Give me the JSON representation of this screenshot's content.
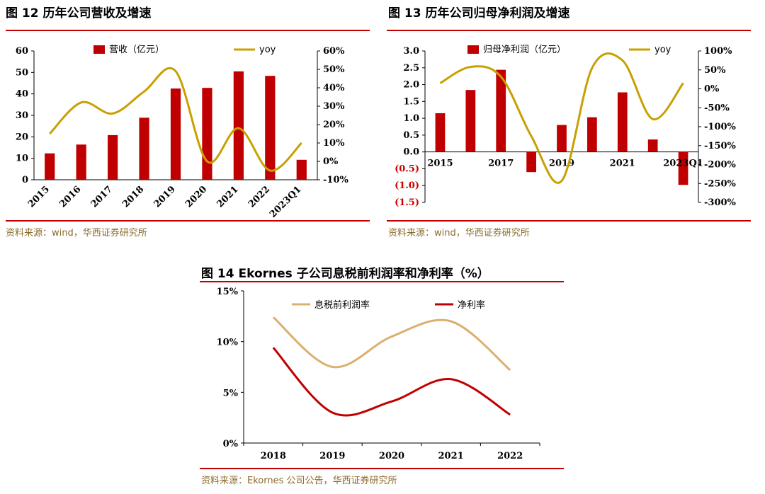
{
  "charts": [
    {
      "fig_title": "图 12    历年公司营收及增速",
      "source": "资料来源：wind，华西证券研究所",
      "chart_data": {
        "type": "bar",
        "categories": [
          "2015",
          "2016",
          "2017",
          "2018",
          "2019",
          "2020",
          "2021",
          "2022",
          "2023Q1"
        ],
        "series": [
          {
            "name": "营收（亿元）",
            "type": "bar",
            "axis": "left",
            "color": "#c00000",
            "values": [
              12.3,
              16.4,
              20.8,
              28.9,
              42.5,
              42.8,
              50.5,
              48.4,
              9.3
            ]
          },
          {
            "name": "yoy",
            "type": "line",
            "axis": "right",
            "color": "#c8a000",
            "values": [
              15,
              32,
              26,
              38,
              49,
              0,
              18,
              -5,
              10
            ]
          }
        ],
        "left_axis": {
          "ylim": [
            0,
            60
          ],
          "ticks": [
            "0",
            "10",
            "20",
            "30",
            "40",
            "50",
            "60"
          ]
        },
        "right_axis": {
          "ylim": [
            -10,
            60
          ],
          "ticks": [
            "-10%",
            "0%",
            "10%",
            "20%",
            "30%",
            "40%",
            "50%",
            "60%"
          ]
        },
        "legend": "top"
      }
    },
    {
      "fig_title": "图 13    历年公司归母净利润及增速",
      "source": "资料来源：wind，华西证券研究所",
      "chart_data": {
        "type": "bar",
        "categories": [
          "2015",
          "2016",
          "2017",
          "2018",
          "2019",
          "2020",
          "2021",
          "2022",
          "2023Q1"
        ],
        "x_tick_labels": [
          "2015",
          "2017",
          "2019",
          "2021",
          "2023Q1"
        ],
        "series": [
          {
            "name": "归母净利润（亿元）",
            "type": "bar",
            "axis": "left",
            "color": "#c00000",
            "values": [
              1.15,
              1.84,
              2.44,
              -0.6,
              0.8,
              1.03,
              1.77,
              0.37,
              -0.98
            ]
          },
          {
            "name": "yoy",
            "type": "line",
            "axis": "right",
            "color": "#c8a000",
            "values": [
              15,
              58,
              32,
              -125,
              -243,
              55,
              75,
              -80,
              15
            ]
          }
        ],
        "left_axis": {
          "ylim": [
            -1.5,
            3.0
          ],
          "ticks": [
            "(1.5)",
            "(1.0)",
            "(0.5)",
            "0.0",
            "0.5",
            "1.0",
            "1.5",
            "2.0",
            "2.5",
            "3.0"
          ]
        },
        "right_axis": {
          "ylim": [
            -300,
            100
          ],
          "ticks": [
            "-300%",
            "-250%",
            "-200%",
            "-150%",
            "-100%",
            "-50%",
            "0%",
            "50%",
            "100%"
          ]
        },
        "legend": "top"
      }
    },
    {
      "fig_title": "图 14 Ekornes 子公司息税前利润率和净利率（%）",
      "source": "资料来源：Ekornes 公司公告，华西证券研究所",
      "chart_data": {
        "type": "line",
        "categories": [
          "2018",
          "2019",
          "2020",
          "2021",
          "2022"
        ],
        "series": [
          {
            "name": "息税前利润率",
            "color": "#d9b070",
            "values": [
              12.4,
              7.5,
              10.5,
              12.0,
              7.2
            ]
          },
          {
            "name": "净利率",
            "color": "#c00000",
            "values": [
              9.4,
              3.0,
              4.1,
              6.3,
              2.8
            ]
          }
        ],
        "ylim": [
          0,
          15
        ],
        "ticks": [
          "0%",
          "5%",
          "10%",
          "15%"
        ],
        "legend": "top"
      }
    }
  ]
}
